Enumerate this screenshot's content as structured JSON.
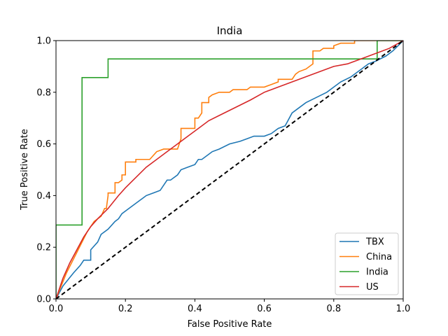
{
  "chart_data": {
    "type": "line",
    "title": "India",
    "xlabel": "False Positive Rate",
    "ylabel": "True Positive Rate",
    "xlim": [
      0,
      1
    ],
    "ylim": [
      0,
      1
    ],
    "xticks": [
      "0.0",
      "0.2",
      "0.4",
      "0.6",
      "0.8",
      "1.0"
    ],
    "yticks": [
      "0.0",
      "0.2",
      "0.4",
      "0.6",
      "0.8",
      "1.0"
    ],
    "grid": false,
    "legend_position": "lower right",
    "diagonal": {
      "x": [
        0,
        1
      ],
      "y": [
        0,
        1
      ],
      "style": "dashed",
      "color": "#000000"
    },
    "series": [
      {
        "name": "TBX",
        "color": "#1f77b4",
        "x": [
          0,
          0.02,
          0.05,
          0.07,
          0.08,
          0.1,
          0.1,
          0.12,
          0.13,
          0.15,
          0.17,
          0.18,
          0.19,
          0.2,
          0.22,
          0.24,
          0.25,
          0.26,
          0.28,
          0.3,
          0.32,
          0.33,
          0.35,
          0.36,
          0.38,
          0.4,
          0.41,
          0.42,
          0.44,
          0.45,
          0.47,
          0.5,
          0.53,
          0.55,
          0.57,
          0.6,
          0.62,
          0.64,
          0.66,
          0.68,
          0.7,
          0.72,
          0.75,
          0.78,
          0.8,
          0.82,
          0.85,
          0.88,
          0.89,
          0.9,
          0.92,
          0.95,
          0.97,
          1.0
        ],
        "y": [
          0,
          0.05,
          0.1,
          0.13,
          0.15,
          0.15,
          0.19,
          0.22,
          0.25,
          0.27,
          0.3,
          0.31,
          0.33,
          0.34,
          0.36,
          0.38,
          0.39,
          0.4,
          0.41,
          0.42,
          0.46,
          0.46,
          0.48,
          0.5,
          0.51,
          0.52,
          0.54,
          0.54,
          0.56,
          0.57,
          0.58,
          0.6,
          0.61,
          0.62,
          0.63,
          0.63,
          0.64,
          0.66,
          0.67,
          0.72,
          0.74,
          0.76,
          0.78,
          0.8,
          0.82,
          0.84,
          0.86,
          0.89,
          0.9,
          0.91,
          0.92,
          0.94,
          0.96,
          1.0
        ]
      },
      {
        "name": "China",
        "color": "#ff7f0e",
        "x": [
          0,
          0.03,
          0.06,
          0.09,
          0.11,
          0.13,
          0.14,
          0.145,
          0.15,
          0.15,
          0.17,
          0.17,
          0.18,
          0.19,
          0.19,
          0.2,
          0.2,
          0.21,
          0.23,
          0.23,
          0.27,
          0.29,
          0.31,
          0.35,
          0.36,
          0.36,
          0.4,
          0.4,
          0.41,
          0.42,
          0.42,
          0.44,
          0.44,
          0.45,
          0.47,
          0.5,
          0.51,
          0.55,
          0.56,
          0.6,
          0.62,
          0.64,
          0.64,
          0.68,
          0.69,
          0.7,
          0.72,
          0.74,
          0.74,
          0.76,
          0.77,
          0.78,
          0.8,
          0.8,
          0.82,
          0.86,
          0.86,
          1.0
        ],
        "y": [
          0,
          0.1,
          0.18,
          0.26,
          0.3,
          0.32,
          0.35,
          0.35,
          0.4,
          0.41,
          0.41,
          0.45,
          0.45,
          0.46,
          0.48,
          0.48,
          0.53,
          0.53,
          0.53,
          0.54,
          0.54,
          0.57,
          0.58,
          0.58,
          0.62,
          0.66,
          0.66,
          0.7,
          0.7,
          0.72,
          0.76,
          0.76,
          0.78,
          0.79,
          0.8,
          0.8,
          0.81,
          0.81,
          0.82,
          0.82,
          0.83,
          0.84,
          0.85,
          0.85,
          0.87,
          0.88,
          0.89,
          0.91,
          0.96,
          0.96,
          0.97,
          0.97,
          0.97,
          0.98,
          0.99,
          0.99,
          1.0,
          1.0
        ]
      },
      {
        "name": "India",
        "color": "#2ca02c",
        "x": [
          0,
          0,
          0.075,
          0.075,
          0.15,
          0.15,
          0.925,
          0.925,
          1.0
        ],
        "y": [
          0,
          0.286,
          0.286,
          0.857,
          0.857,
          0.929,
          0.929,
          1.0,
          1.0
        ]
      },
      {
        "name": "US",
        "color": "#d62728",
        "x": [
          0,
          0.02,
          0.04,
          0.06,
          0.08,
          0.1,
          0.12,
          0.15,
          0.18,
          0.2,
          0.23,
          0.26,
          0.29,
          0.32,
          0.35,
          0.38,
          0.41,
          0.44,
          0.47,
          0.5,
          0.53,
          0.56,
          0.6,
          0.64,
          0.68,
          0.72,
          0.76,
          0.8,
          0.84,
          0.88,
          0.92,
          0.96,
          1.0
        ],
        "y": [
          0,
          0.08,
          0.14,
          0.19,
          0.24,
          0.28,
          0.31,
          0.35,
          0.4,
          0.43,
          0.47,
          0.51,
          0.54,
          0.57,
          0.6,
          0.63,
          0.66,
          0.69,
          0.71,
          0.73,
          0.75,
          0.77,
          0.8,
          0.82,
          0.84,
          0.86,
          0.88,
          0.9,
          0.91,
          0.93,
          0.95,
          0.97,
          1.0
        ]
      }
    ]
  }
}
